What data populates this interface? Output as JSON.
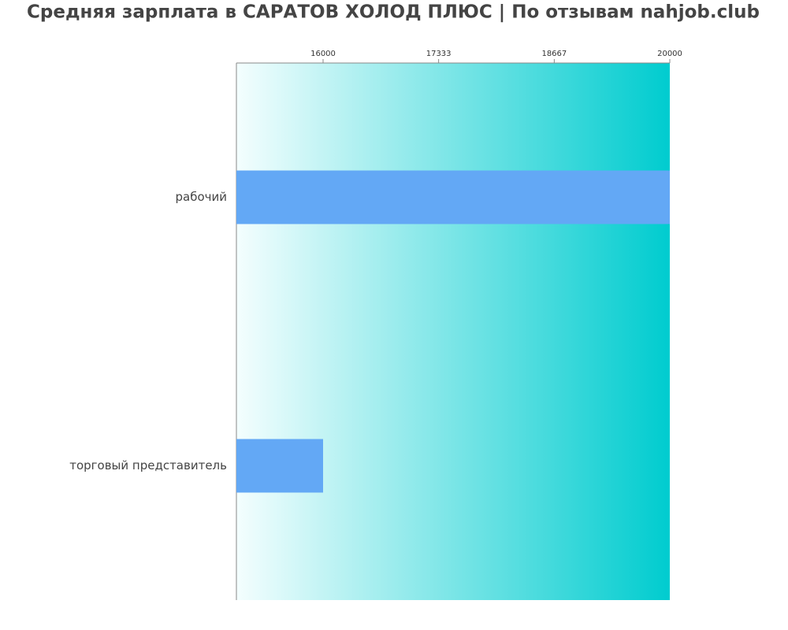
{
  "chart_data": {
    "type": "bar",
    "orientation": "horizontal",
    "title": "Средняя зарплата в САРАТОВ ХОЛОД ПЛЮС | По отзывам nahjob.club",
    "categories": [
      "рабочий",
      "торговый представитель"
    ],
    "values": [
      20000,
      16000
    ],
    "color": "#63a8f5",
    "xlim": [
      15000,
      20000
    ],
    "xticks": [
      16000,
      17333,
      18667,
      20000
    ],
    "grid": false
  }
}
